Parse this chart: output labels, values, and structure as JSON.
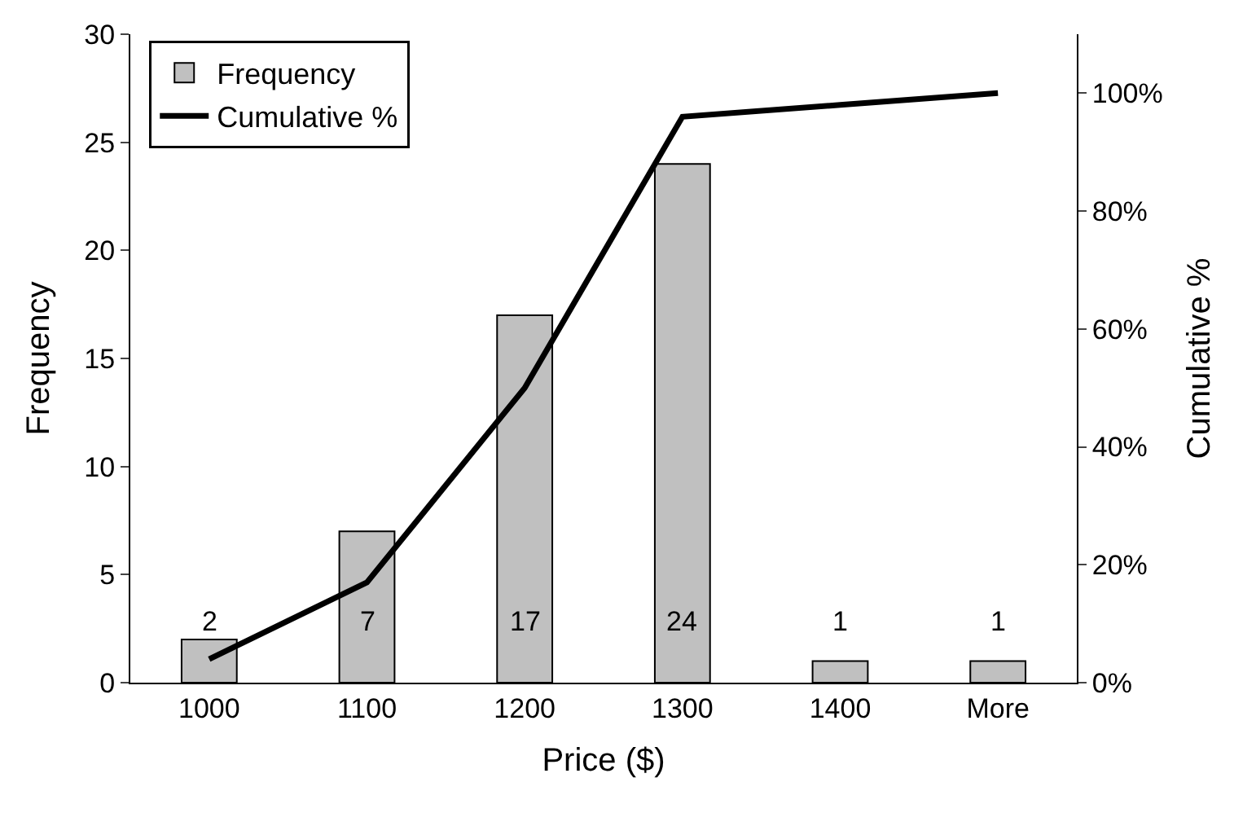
{
  "chart_data": {
    "type": "bar",
    "xlabel": "Price ($)",
    "ylabel": "Frequency",
    "y2label": "Cumulative %",
    "categories": [
      "1000",
      "1100",
      "1200",
      "1300",
      "1400",
      "More"
    ],
    "series": [
      {
        "name": "Frequency",
        "color": "#c0c0c0",
        "values": [
          2,
          7,
          17,
          24,
          1,
          1
        ],
        "value_labels": [
          "2",
          "7",
          "17",
          "24",
          "1",
          "1"
        ]
      },
      {
        "name": "Cumulative %",
        "type": "line",
        "axis": "y2",
        "color": "#000000",
        "values": [
          4,
          17,
          50,
          96,
          98,
          100
        ]
      }
    ],
    "legend": "top left",
    "marker": "none",
    "line_style": "solid",
    "ylim": [
      0,
      30
    ],
    "yticks": [
      0,
      5,
      10,
      15,
      20,
      25,
      30
    ],
    "y2lim": [
      0,
      110
    ],
    "y2ticks": [
      {
        "value": 0,
        "label": "0%"
      },
      {
        "value": 20,
        "label": "20%"
      },
      {
        "value": 40,
        "label": "40%"
      },
      {
        "value": 60,
        "label": "60%"
      },
      {
        "value": 80,
        "label": "80%"
      },
      {
        "value": 100,
        "label": "100%"
      }
    ]
  }
}
